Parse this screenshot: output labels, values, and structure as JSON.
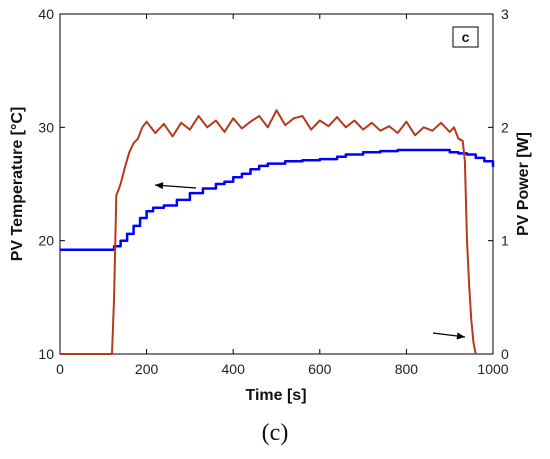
{
  "figure": {
    "caption": "(c)",
    "panel_label": "c"
  },
  "chart_data": {
    "type": "line",
    "title": "",
    "xlabel": "Time [s]",
    "ylabel": "PV Temperature [°C]",
    "y2label": "PV Power [W]",
    "xlim": [
      0,
      1000
    ],
    "ylim": [
      10,
      40
    ],
    "y2lim": [
      0,
      3
    ],
    "x_ticks": [
      0,
      200,
      400,
      600,
      800,
      1000
    ],
    "y_ticks": [
      10,
      20,
      30,
      40
    ],
    "y2_ticks": [
      0,
      1,
      2,
      3
    ],
    "grid": false,
    "series": [
      {
        "axis": "left",
        "color": "#0000ff",
        "x": [
          0,
          115,
          125,
          140,
          155,
          170,
          185,
          200,
          215,
          240,
          270,
          300,
          330,
          360,
          380,
          400,
          420,
          440,
          460,
          480,
          520,
          560,
          600,
          640,
          660,
          700,
          740,
          780,
          800,
          820,
          860,
          900,
          920,
          940,
          960,
          980,
          1000
        ],
        "y": [
          19.2,
          19.2,
          19.5,
          20.0,
          20.6,
          21.3,
          22.0,
          22.6,
          22.9,
          23.1,
          23.6,
          24.2,
          24.6,
          25.0,
          25.2,
          25.6,
          25.9,
          26.3,
          26.6,
          26.8,
          27.0,
          27.1,
          27.2,
          27.4,
          27.6,
          27.8,
          27.9,
          28.0,
          28.0,
          28.0,
          28.0,
          27.8,
          27.7,
          27.6,
          27.3,
          27.0,
          26.5
        ]
      },
      {
        "axis": "right",
        "color": "#b5391c",
        "x": [
          0,
          120,
          125,
          130,
          135,
          140,
          150,
          160,
          170,
          180,
          190,
          200,
          220,
          240,
          260,
          280,
          300,
          320,
          340,
          360,
          380,
          400,
          420,
          440,
          460,
          480,
          500,
          520,
          540,
          560,
          580,
          600,
          620,
          640,
          660,
          680,
          700,
          720,
          740,
          760,
          780,
          800,
          820,
          840,
          860,
          880,
          900,
          910,
          920,
          930,
          935,
          940,
          945,
          950,
          955,
          960
        ],
        "y": [
          0,
          0,
          0.5,
          1.4,
          1.45,
          1.5,
          1.65,
          1.78,
          1.86,
          1.9,
          2.0,
          2.05,
          1.95,
          2.03,
          1.92,
          2.04,
          1.98,
          2.1,
          2.0,
          2.06,
          1.96,
          2.08,
          1.99,
          2.05,
          2.1,
          2.0,
          2.15,
          2.02,
          2.08,
          2.1,
          1.98,
          2.06,
          2.01,
          2.09,
          2.0,
          2.06,
          1.98,
          2.04,
          1.97,
          2.01,
          1.95,
          2.05,
          1.93,
          2.0,
          1.97,
          2.04,
          1.96,
          2.0,
          1.9,
          1.88,
          1.7,
          1.0,
          0.6,
          0.3,
          0.1,
          0
        ]
      }
    ],
    "annotations": [
      {
        "type": "arrow",
        "points_to": "left-axis"
      },
      {
        "type": "arrow",
        "points_to": "right-axis"
      }
    ]
  }
}
